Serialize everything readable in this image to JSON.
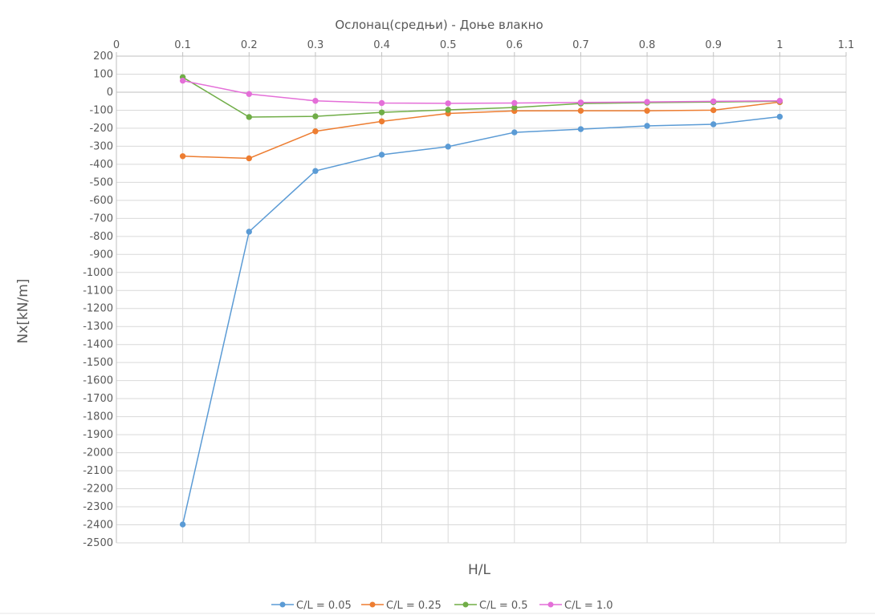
{
  "chart_data": {
    "type": "scatter",
    "title": "Ослонац(средњи) - Доње влакно",
    "xlabel": "H/L",
    "ylabel": "Nx[kN/m]",
    "xlim": [
      0,
      1.1
    ],
    "ylim": [
      -2500,
      200
    ],
    "x_ticks": [
      "0",
      "0.1",
      "0.2",
      "0.3",
      "0.4",
      "0.5",
      "0.6",
      "0.7",
      "0.8",
      "0.9",
      "1",
      "1.1"
    ],
    "y_ticks": [
      "200",
      "100",
      "0",
      "-100",
      "-200",
      "-300",
      "-400",
      "-500",
      "-600",
      "-700",
      "-800",
      "-900",
      "-1000",
      "-1100",
      "-1200",
      "-1300",
      "-1400",
      "-1500",
      "-1600",
      "-1700",
      "-1800",
      "-1900",
      "-2000",
      "-2100",
      "-2200",
      "-2300",
      "-2400",
      "-2500"
    ],
    "x_axis_position": "top",
    "grid": true,
    "legend_position": "bottom",
    "x": [
      0.1,
      0.2,
      0.3,
      0.4,
      0.5,
      0.6,
      0.7,
      0.8,
      0.9,
      1.0
    ],
    "series": [
      {
        "name": "C/L = 0.05",
        "color": "#5b9bd5",
        "values": [
          -2398,
          -774,
          -437,
          -347,
          -302,
          -223,
          -205,
          -187,
          -178,
          -136
        ]
      },
      {
        "name": "C/L = 0.25",
        "color": "#ed7d31",
        "values": [
          -355,
          -367,
          -217,
          -162,
          -118,
          -104,
          -103,
          -103,
          -100,
          -55
        ]
      },
      {
        "name": "C/L = 0.5",
        "color": "#70ad47",
        "values": [
          83,
          -138,
          -134,
          -112,
          -98,
          -85,
          -63,
          -58,
          -55,
          -50
        ]
      },
      {
        "name": "C/L = 1.0",
        "color": "#e46fd8",
        "values": [
          64,
          -10,
          -48,
          -60,
          -62,
          -60,
          -57,
          -54,
          -51,
          -48
        ]
      }
    ]
  }
}
